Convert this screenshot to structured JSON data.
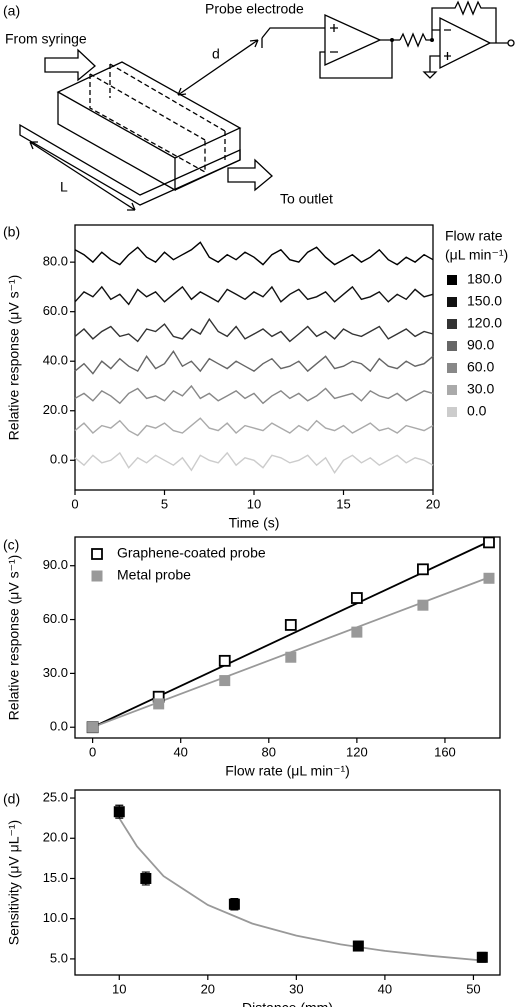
{
  "diagram": {
    "panel": "(a)",
    "probe_label": "Probe electrode",
    "inlet_label": "From syringe",
    "distance_label": "d",
    "length_label": "L",
    "outlet_label": "To outlet"
  },
  "chart_data": [
    {
      "type": "line",
      "panel": "(b)",
      "xlabel": "Time (s)",
      "ylabel": "Relative response (μV s⁻¹)",
      "legend_title": [
        "Flow rate",
        "(μL min⁻¹)"
      ],
      "legend": "right",
      "x": [
        0,
        0.5,
        1,
        1.5,
        2,
        2.5,
        3,
        3.5,
        4,
        4.5,
        5,
        5.5,
        6,
        6.5,
        7,
        7.5,
        8,
        8.5,
        9,
        9.5,
        10,
        10.5,
        11,
        11.5,
        12,
        12.5,
        13,
        13.5,
        14,
        14.5,
        15,
        15.5,
        16,
        16.5,
        17,
        17.5,
        18,
        18.5,
        19,
        19.5,
        20
      ],
      "xlim": [
        0,
        20
      ],
      "xticks": [
        0,
        5,
        10,
        15,
        20
      ],
      "ylim": [
        -12,
        95
      ],
      "yticks": [
        {
          "value": 0,
          "label": "0.0"
        },
        {
          "value": 20,
          "label": "20.0"
        },
        {
          "value": 40,
          "label": "40.0"
        },
        {
          "value": 60,
          "label": "60.0"
        },
        {
          "value": 80,
          "label": "80.0"
        }
      ],
      "series": [
        {
          "name": "180.0",
          "color": "#000000",
          "values": [
            85,
            83,
            80,
            84,
            81,
            79,
            83,
            86,
            82,
            80,
            84,
            81,
            83,
            85,
            88,
            82,
            80,
            83,
            81,
            84,
            82,
            79,
            83,
            85,
            81,
            80,
            84,
            86,
            82,
            79,
            81,
            83,
            80,
            82,
            85,
            81,
            79,
            82,
            80,
            83,
            81
          ]
        },
        {
          "name": "150.0",
          "color": "#111111",
          "values": [
            64,
            68,
            66,
            70,
            65,
            67,
            63,
            69,
            66,
            68,
            64,
            67,
            70,
            65,
            68,
            66,
            64,
            69,
            67,
            65,
            68,
            66,
            70,
            64,
            67,
            69,
            65,
            66,
            68,
            64,
            67,
            70,
            65,
            66,
            68,
            64,
            67,
            65,
            69,
            66,
            67
          ]
        },
        {
          "name": "120.0",
          "color": "#333333",
          "values": [
            50,
            53,
            49,
            52,
            54,
            50,
            51,
            48,
            53,
            52,
            55,
            50,
            49,
            53,
            51,
            57,
            52,
            50,
            54,
            49,
            51,
            53,
            50,
            52,
            48,
            51,
            54,
            50,
            52,
            49,
            53,
            51,
            50,
            52,
            54,
            49,
            51,
            53,
            50,
            52,
            51
          ]
        },
        {
          "name": "90.0",
          "color": "#666666",
          "values": [
            36,
            39,
            35,
            40,
            37,
            41,
            38,
            36,
            42,
            37,
            39,
            44,
            38,
            40,
            36,
            41,
            39,
            37,
            40,
            38,
            36,
            39,
            41,
            37,
            38,
            40,
            36,
            39,
            42,
            37,
            38,
            40,
            39,
            36,
            41,
            38,
            37,
            40,
            38,
            39,
            42
          ]
        },
        {
          "name": "60.0",
          "color": "#888888",
          "values": [
            25,
            27,
            24,
            28,
            26,
            23,
            27,
            29,
            25,
            26,
            24,
            28,
            26,
            30,
            25,
            27,
            24,
            26,
            28,
            25,
            27,
            23,
            26,
            28,
            25,
            27,
            24,
            26,
            29,
            25,
            26,
            27,
            24,
            28,
            26,
            25,
            27,
            24,
            26,
            28,
            27
          ]
        },
        {
          "name": "30.0",
          "color": "#aaaaaa",
          "values": [
            12,
            15,
            11,
            14,
            13,
            16,
            12,
            10,
            14,
            13,
            15,
            12,
            11,
            14,
            17,
            13,
            12,
            15,
            11,
            14,
            13,
            12,
            15,
            13,
            11,
            14,
            12,
            16,
            13,
            12,
            14,
            11,
            13,
            15,
            12,
            13,
            11,
            14,
            13,
            12,
            14
          ]
        },
        {
          "name": "0.0",
          "color": "#cccccc",
          "values": [
            1,
            -2,
            2,
            -1,
            0,
            3,
            -3,
            1,
            -1,
            2,
            0,
            -2,
            1,
            -4,
            2,
            0,
            -1,
            3,
            -2,
            1,
            0,
            -3,
            2,
            1,
            -1,
            0,
            2,
            -2,
            1,
            -5,
            0,
            2,
            -1,
            1,
            -2,
            0,
            2,
            -1,
            1,
            0,
            -2
          ]
        }
      ]
    },
    {
      "type": "scatter",
      "panel": "(c)",
      "xlabel": "Flow rate (μL min⁻¹)",
      "ylabel": "Relative response (μV s⁻¹)",
      "legend": "upper left",
      "x": [
        0,
        30,
        60,
        90,
        120,
        150,
        180
      ],
      "xlim": [
        -8,
        185
      ],
      "xticks": [
        0,
        40,
        80,
        120,
        160
      ],
      "ylim": [
        -6,
        106
      ],
      "yticks": [
        {
          "value": 0,
          "label": "0.0"
        },
        {
          "value": 30,
          "label": "30.0"
        },
        {
          "value": 60,
          "label": "60.0"
        },
        {
          "value": 90,
          "label": "90.0"
        }
      ],
      "series": [
        {
          "name": "Graphene-coated probe",
          "color": "#000000",
          "marker": "open-square",
          "values": [
            0,
            17,
            37,
            57,
            72,
            88,
            103
          ]
        },
        {
          "name": "Metal probe",
          "color": "#999999",
          "marker": "filled-square",
          "values": [
            0,
            13,
            26,
            39,
            53,
            68,
            83
          ]
        }
      ],
      "fits": [
        {
          "color": "#000000",
          "x": [
            0,
            180
          ],
          "values": [
            0,
            103.5
          ]
        },
        {
          "color": "#999999",
          "x": [
            0,
            180
          ],
          "values": [
            0,
            83.5
          ]
        }
      ]
    },
    {
      "type": "scatter",
      "panel": "(d)",
      "xlabel": "Distance (mm)",
      "ylabel": "Sensitivity (μV μL⁻¹)",
      "x": [
        10,
        13,
        23,
        37,
        51
      ],
      "xlim": [
        5,
        53
      ],
      "xticks": [
        10,
        20,
        30,
        40,
        50
      ],
      "ylim": [
        3,
        26
      ],
      "yticks": [
        {
          "value": 5,
          "label": "5.0"
        },
        {
          "value": 10,
          "label": "10.0"
        },
        {
          "value": 15,
          "label": "15.0"
        },
        {
          "value": 20,
          "label": "20.0"
        },
        {
          "value": 25,
          "label": "25.0"
        }
      ],
      "series": [
        {
          "color": "#000000",
          "marker": "filled-square",
          "values": [
            23.3,
            15.0,
            11.8,
            6.6,
            5.2
          ],
          "errors": [
            0.8,
            0.8,
            0.7,
            0.6,
            0.6
          ]
        }
      ],
      "fits": [
        {
          "color": "#999999",
          "x": [
            10,
            12,
            15,
            20,
            25,
            30,
            35,
            40,
            45,
            51
          ],
          "values": [
            22.5,
            19.0,
            15.3,
            11.7,
            9.4,
            7.9,
            6.8,
            6.0,
            5.4,
            4.8
          ]
        }
      ]
    }
  ]
}
